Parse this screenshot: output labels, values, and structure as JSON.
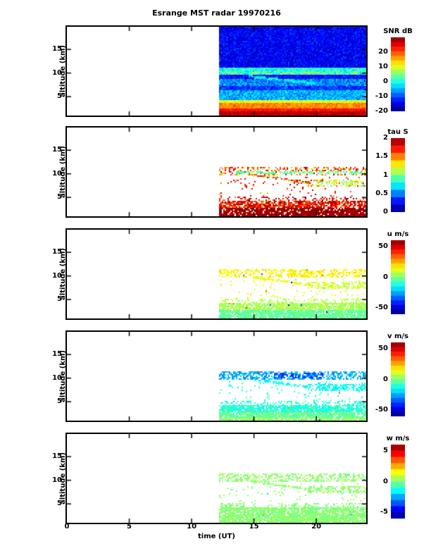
{
  "title": "Esrange MST radar 19970216",
  "xlabel": "time (UT)",
  "ylabel": "altitude (km)",
  "axes": {
    "time_range": [
      0,
      24
    ],
    "altitude_range": [
      1.0,
      19.8
    ],
    "x_ticks": [
      0,
      5,
      10,
      15,
      20
    ],
    "y_ticks": [
      5,
      10,
      15
    ],
    "data_time_start": 12.2,
    "frame_color": "#000000",
    "background_color": "#ffffff"
  },
  "chart_data": [
    {
      "type": "heatmap",
      "name": "snr",
      "colorbar_title": "SNR dB",
      "colormap": "jet",
      "value_range": [
        -20,
        30
      ],
      "colorbar_ticks": [
        20,
        10,
        0,
        -10,
        -20
      ],
      "colorbar_steps": 16,
      "coverage": "full",
      "seed": 7,
      "bands": [
        {
          "alt": [
            11.3,
            19.9
          ],
          "value": -14,
          "spread": 5,
          "cov": 1
        },
        {
          "alt": [
            9.7,
            11.3
          ],
          "value": 0,
          "spread": 6,
          "cov": 1
        },
        {
          "alt": [
            8.8,
            9.7
          ],
          "value": -13,
          "spread": 4,
          "cov": 1
        },
        {
          "alt": [
            7.4,
            8.8
          ],
          "value": -7,
          "spread": 6,
          "cov": 1
        },
        {
          "alt": [
            6.4,
            7.4
          ],
          "value": -11,
          "spread": 5,
          "cov": 1
        },
        {
          "alt": [
            4.5,
            6.4
          ],
          "value": -5,
          "spread": 6,
          "cov": 1
        },
        {
          "alt": [
            3.7,
            4.5
          ],
          "value": 10,
          "spread": 5,
          "cov": 1
        },
        {
          "alt": [
            2.7,
            3.7
          ],
          "value": 17,
          "spread": 4,
          "cov": 1
        },
        {
          "alt": [
            1.9,
            2.7
          ],
          "value": 23,
          "spread": 3,
          "cov": 1
        },
        {
          "alt": [
            0.9,
            1.9
          ],
          "value": 27,
          "spread": 3,
          "cov": 1
        }
      ],
      "features": [
        {
          "type": "patch",
          "t": [
            12.2,
            24
          ],
          "alt": [
            9.8,
            10.3
          ],
          "value": 7,
          "spread": 5,
          "cov": 0.4
        },
        {
          "type": "line",
          "t": [
            14.5,
            20
          ],
          "alt": [
            9.5,
            7.9
          ],
          "halfwidth": 0.3,
          "value": -2,
          "spread": 4,
          "cov": 0.8
        }
      ]
    },
    {
      "type": "heatmap",
      "name": "tau",
      "colorbar_title": "tau S",
      "colormap": "jet",
      "value_range": [
        0,
        2
      ],
      "colorbar_ticks": [
        2,
        1.5,
        1,
        0.5,
        0
      ],
      "colorbar_steps": 10,
      "coverage": "sparse",
      "seed": 13,
      "bands": [
        {
          "alt": [
            10.1,
            10.6
          ],
          "t": [
            13.5,
            24
          ],
          "value": 0.95,
          "spread": 0.35,
          "cov": 0.6
        },
        {
          "alt": [
            9.7,
            11.7
          ],
          "value": 1.55,
          "spread": 0.5,
          "cov": 0.45
        },
        {
          "alt": [
            5.2,
            9.5
          ],
          "value": 1.7,
          "spread": 0.4,
          "cov": 0.05
        },
        {
          "alt": [
            4.4,
            5.2
          ],
          "value": 1.8,
          "spread": 0.3,
          "cov": 0.25
        },
        {
          "alt": [
            2.9,
            4.4
          ],
          "value": 1.75,
          "spread": 0.35,
          "cov": 0.8
        },
        {
          "alt": [
            0.9,
            2.9
          ],
          "value": 1.95,
          "spread": 0.12,
          "cov": 0.88
        }
      ],
      "features": [
        {
          "type": "line",
          "t": [
            14.8,
            19.5
          ],
          "alt": [
            9.9,
            8.2
          ],
          "halfwidth": 0.25,
          "value": 1.6,
          "spread": 0.5,
          "cov": 0.7
        },
        {
          "type": "patch",
          "t": [
            19.3,
            24
          ],
          "alt": [
            7.4,
            8.9
          ],
          "value": 1.2,
          "spread": 0.5,
          "cov": 0.45
        },
        {
          "type": "speckle",
          "value": 1.5,
          "spread": 0.6,
          "cov": 0.05
        }
      ]
    },
    {
      "type": "heatmap",
      "name": "u",
      "colorbar_title": "u m/s",
      "colormap": "jet",
      "value_range": [
        -60,
        60
      ],
      "colorbar_ticks": [
        50,
        0,
        -50
      ],
      "colorbar_steps": 16,
      "coverage": "sparse",
      "seed": 21,
      "bands": [
        {
          "alt": [
            9.7,
            11.7
          ],
          "value": 16,
          "spread": 7,
          "cov": 0.5
        },
        {
          "alt": [
            5.2,
            9.5
          ],
          "value": 12,
          "spread": 7,
          "cov": 0.05
        },
        {
          "alt": [
            4.4,
            5.2
          ],
          "value": 7,
          "spread": 6,
          "cov": 0.3
        },
        {
          "alt": [
            2.9,
            4.4
          ],
          "value": 5,
          "spread": 6,
          "cov": 0.85
        },
        {
          "alt": [
            0.9,
            2.9
          ],
          "value": -3,
          "spread": 5,
          "cov": 0.9
        }
      ],
      "features": [
        {
          "type": "line",
          "t": [
            14.8,
            19.5
          ],
          "alt": [
            9.9,
            8.2
          ],
          "halfwidth": 0.25,
          "value": 14,
          "spread": 6,
          "cov": 0.7
        },
        {
          "type": "patch",
          "t": [
            19.3,
            24
          ],
          "alt": [
            7.4,
            8.9
          ],
          "value": 10,
          "spread": 6,
          "cov": 0.5
        },
        {
          "type": "speckle",
          "value": 0,
          "spread": 55,
          "cov": 0.012
        }
      ]
    },
    {
      "type": "heatmap",
      "name": "v",
      "colorbar_title": "v m/s",
      "colormap": "jet",
      "value_range": [
        -60,
        60
      ],
      "colorbar_ticks": [
        50,
        0,
        -50
      ],
      "colorbar_steps": 16,
      "coverage": "sparse",
      "seed": 34,
      "bands": [
        {
          "alt": [
            9.7,
            11.7
          ],
          "value": -25,
          "spread": 9,
          "cov": 0.55
        },
        {
          "alt": [
            5.2,
            9.5
          ],
          "value": -12,
          "spread": 8,
          "cov": 0.05
        },
        {
          "alt": [
            4.4,
            5.2
          ],
          "value": -10,
          "spread": 8,
          "cov": 0.3
        },
        {
          "alt": [
            2.9,
            4.4
          ],
          "value": -10,
          "spread": 8,
          "cov": 0.85
        },
        {
          "alt": [
            1.8,
            2.9
          ],
          "value": -3,
          "spread": 7,
          "cov": 0.9
        },
        {
          "alt": [
            0.9,
            1.8
          ],
          "value": 3,
          "spread": 6,
          "cov": 0.85
        }
      ],
      "features": [
        {
          "type": "patch",
          "t": [
            16.5,
            20.5
          ],
          "alt": [
            10.2,
            11.2
          ],
          "value": -38,
          "spread": 8,
          "cov": 0.5
        },
        {
          "type": "line",
          "t": [
            14.8,
            19.5
          ],
          "alt": [
            9.9,
            8.2
          ],
          "halfwidth": 0.25,
          "value": -15,
          "spread": 7,
          "cov": 0.7
        },
        {
          "type": "patch",
          "t": [
            19.3,
            24
          ],
          "alt": [
            7.4,
            8.9
          ],
          "value": -14,
          "spread": 7,
          "cov": 0.55
        },
        {
          "type": "speckle",
          "value": 0,
          "spread": 40,
          "cov": 0.01
        }
      ]
    },
    {
      "type": "heatmap",
      "name": "w",
      "colorbar_title": "w m/s",
      "colormap": "jet",
      "value_range": [
        -6,
        6
      ],
      "colorbar_ticks": [
        5,
        0,
        -5
      ],
      "colorbar_steps": 12,
      "coverage": "sparse",
      "seed": 55,
      "bands": [
        {
          "alt": [
            9.7,
            11.7
          ],
          "value": 0.2,
          "spread": 0.6,
          "cov": 0.5
        },
        {
          "alt": [
            5.2,
            9.5
          ],
          "value": 0.2,
          "spread": 0.6,
          "cov": 0.05
        },
        {
          "alt": [
            4.4,
            5.2
          ],
          "value": 0.1,
          "spread": 0.5,
          "cov": 0.3
        },
        {
          "alt": [
            2.9,
            4.4
          ],
          "value": 0.1,
          "spread": 0.5,
          "cov": 0.85
        },
        {
          "alt": [
            0.9,
            2.9
          ],
          "value": 0.15,
          "spread": 0.5,
          "cov": 0.9
        }
      ],
      "features": [
        {
          "type": "line",
          "t": [
            14.8,
            19.5
          ],
          "alt": [
            9.9,
            8.2
          ],
          "halfwidth": 0.25,
          "value": 0.2,
          "spread": 0.5,
          "cov": 0.7
        },
        {
          "type": "patch",
          "t": [
            19.3,
            24
          ],
          "alt": [
            7.4,
            8.9
          ],
          "value": 0.2,
          "spread": 0.5,
          "cov": 0.5
        },
        {
          "type": "speckle",
          "value": 0,
          "spread": 4,
          "cov": 0.008
        }
      ]
    }
  ]
}
